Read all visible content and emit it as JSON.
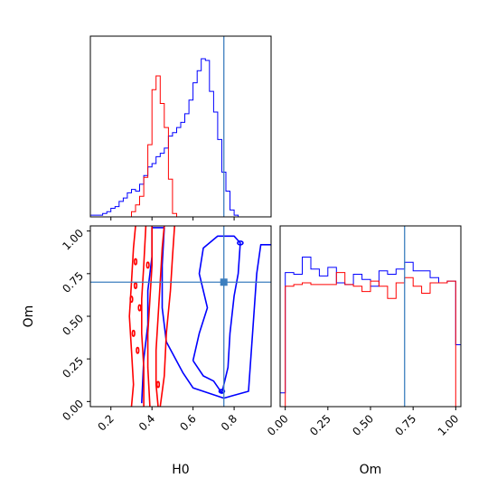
{
  "chart_data": {
    "type": "corner",
    "parameters": [
      "H0",
      "Om"
    ],
    "truth": {
      "H0": 0.75,
      "Om": 0.7,
      "color": "#3d7fbf"
    },
    "colors": {
      "series_a": "#ff0000",
      "series_b": "#0000ff"
    },
    "panels": [
      {
        "id": "hist-H0",
        "type": "histogram",
        "xlim": [
          0.1,
          0.98
        ],
        "bins": [
          0.1,
          0.12,
          0.14,
          0.16,
          0.18,
          0.2,
          0.22,
          0.24,
          0.26,
          0.28,
          0.3,
          0.32,
          0.34,
          0.36,
          0.38,
          0.4,
          0.42,
          0.44,
          0.46,
          0.48,
          0.5,
          0.52,
          0.54,
          0.56,
          0.58,
          0.6,
          0.62,
          0.64,
          0.66,
          0.68,
          0.7,
          0.72,
          0.74,
          0.76,
          0.78,
          0.8,
          0.82,
          0.84,
          0.86,
          0.88,
          0.9,
          0.92,
          0.94,
          0.96,
          0.98
        ],
        "series_a_counts": [
          0,
          0,
          0,
          0,
          0,
          0,
          0,
          0,
          0,
          0,
          0.03,
          0.07,
          0.12,
          0.23,
          0.42,
          0.74,
          0.82,
          0.66,
          0.52,
          0.22,
          0.02,
          0,
          0,
          0,
          0,
          0,
          0,
          0,
          0,
          0,
          0,
          0,
          0,
          0,
          0,
          0,
          0,
          0,
          0,
          0,
          0,
          0,
          0,
          0
        ],
        "series_b_counts": [
          0.01,
          0.01,
          0.01,
          0.02,
          0.03,
          0.05,
          0.06,
          0.09,
          0.11,
          0.14,
          0.16,
          0.15,
          0.19,
          0.24,
          0.29,
          0.31,
          0.35,
          0.37,
          0.4,
          0.47,
          0.49,
          0.52,
          0.55,
          0.6,
          0.68,
          0.78,
          0.85,
          0.92,
          0.91,
          0.73,
          0.61,
          0.45,
          0.26,
          0.15,
          0.04,
          0.01,
          0,
          0,
          0,
          0,
          0,
          0,
          0,
          0
        ]
      },
      {
        "id": "scatter-H0-Om",
        "type": "contour",
        "xlim": [
          0.1,
          0.98
        ],
        "ylim": [
          -0.03,
          1.03
        ],
        "xlabel": "H0",
        "ylabel": "Om",
        "xticks": [
          0.2,
          0.4,
          0.6,
          0.8
        ],
        "xtick_labels": [
          "0.2",
          "0.4",
          "0.6",
          "0.8"
        ],
        "yticks": [
          0.0,
          0.25,
          0.5,
          0.75,
          1.0
        ],
        "ytick_labels": [
          "0.00",
          "0.25",
          "0.50",
          "0.75",
          "1.00"
        ],
        "series_a_contours": [
          [
            [
              0.3,
              -0.03
            ],
            [
              0.31,
              0.1
            ],
            [
              0.3,
              0.3
            ],
            [
              0.29,
              0.5
            ],
            [
              0.3,
              0.7
            ],
            [
              0.31,
              0.9
            ],
            [
              0.32,
              1.03
            ]
          ],
          [
            [
              0.46,
              1.03
            ],
            [
              0.45,
              0.9
            ],
            [
              0.44,
              0.7
            ],
            [
              0.43,
              0.5
            ],
            [
              0.42,
              0.3
            ],
            [
              0.42,
              0.1
            ],
            [
              0.43,
              -0.03
            ]
          ],
          [
            [
              0.36,
              -0.03
            ],
            [
              0.36,
              0.2
            ],
            [
              0.35,
              0.4
            ],
            [
              0.35,
              0.6
            ],
            [
              0.36,
              0.8
            ],
            [
              0.37,
              1.03
            ]
          ],
          [
            [
              0.4,
              1.03
            ],
            [
              0.4,
              0.8
            ],
            [
              0.39,
              0.6
            ],
            [
              0.38,
              0.4
            ],
            [
              0.38,
              0.2
            ],
            [
              0.39,
              -0.03
            ]
          ],
          [
            [
              0.44,
              -0.03
            ],
            [
              0.46,
              0.15
            ],
            [
              0.47,
              0.4
            ],
            [
              0.49,
              0.65
            ],
            [
              0.5,
              0.85
            ],
            [
              0.51,
              1.03
            ]
          ]
        ],
        "series_b_contours": [
          [
            [
              0.35,
              -0.01
            ],
            [
              0.36,
              0.25
            ],
            [
              0.38,
              0.45
            ],
            [
              0.38,
              0.65
            ],
            [
              0.4,
              0.85
            ],
            [
              0.4,
              1.02
            ],
            [
              0.46,
              1.02
            ],
            [
              0.45,
              0.8
            ],
            [
              0.45,
              0.55
            ],
            [
              0.47,
              0.35
            ],
            [
              0.55,
              0.17
            ],
            [
              0.6,
              0.08
            ],
            [
              0.75,
              0.02
            ],
            [
              0.87,
              0.06
            ],
            [
              0.89,
              0.4
            ],
            [
              0.91,
              0.75
            ],
            [
              0.93,
              0.92
            ],
            [
              0.98,
              0.92
            ]
          ],
          [
            [
              0.6,
              0.24
            ],
            [
              0.63,
              0.4
            ],
            [
              0.67,
              0.55
            ],
            [
              0.63,
              0.75
            ],
            [
              0.65,
              0.9
            ],
            [
              0.72,
              0.97
            ],
            [
              0.8,
              0.97
            ],
            [
              0.83,
              0.93
            ],
            [
              0.82,
              0.75
            ],
            [
              0.8,
              0.62
            ],
            [
              0.78,
              0.4
            ],
            [
              0.77,
              0.2
            ],
            [
              0.74,
              0.05
            ],
            [
              0.7,
              0.12
            ],
            [
              0.65,
              0.15
            ],
            [
              0.6,
              0.24
            ]
          ]
        ]
      },
      {
        "id": "hist-Om",
        "type": "histogram",
        "xlim": [
          -0.03,
          1.03
        ],
        "xlabel": "Om",
        "xticks": [
          0.0,
          0.25,
          0.5,
          0.75,
          1.0
        ],
        "xtick_labels": [
          "0.00",
          "0.25",
          "0.50",
          "0.75",
          "1.00"
        ],
        "bins": [
          -0.03,
          0.0,
          0.05,
          0.1,
          0.15,
          0.2,
          0.25,
          0.3,
          0.35,
          0.4,
          0.45,
          0.5,
          0.55,
          0.6,
          0.65,
          0.7,
          0.75,
          0.8,
          0.85,
          0.9,
          0.95,
          1.0,
          1.03
        ],
        "series_a_counts": [
          0,
          0.7,
          0.71,
          0.72,
          0.71,
          0.71,
          0.71,
          0.78,
          0.71,
          0.7,
          0.67,
          0.73,
          0.7,
          0.63,
          0.72,
          0.75,
          0.7,
          0.66,
          0.72,
          0.72,
          0.73,
          0
        ],
        "series_b_counts": [
          0.08,
          0.78,
          0.77,
          0.87,
          0.8,
          0.76,
          0.81,
          0.72,
          0.71,
          0.77,
          0.74,
          0.7,
          0.79,
          0.77,
          0.8,
          0.84,
          0.79,
          0.79,
          0.75,
          0.72,
          0.73,
          0.36
        ]
      }
    ]
  }
}
